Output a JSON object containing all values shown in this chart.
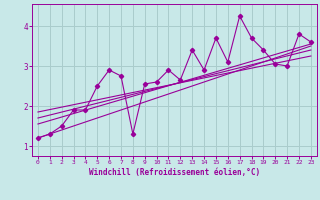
{
  "x_data": [
    0,
    1,
    2,
    3,
    4,
    5,
    6,
    7,
    8,
    9,
    10,
    11,
    12,
    13,
    14,
    15,
    16,
    17,
    18,
    19,
    20,
    21,
    22,
    23
  ],
  "y_scatter": [
    1.2,
    1.3,
    1.5,
    1.9,
    1.9,
    2.5,
    2.9,
    2.75,
    1.3,
    2.55,
    2.6,
    2.9,
    2.65,
    3.4,
    2.9,
    3.7,
    3.1,
    4.25,
    3.7,
    3.4,
    3.05,
    3.0,
    3.8,
    3.6
  ],
  "color": "#990099",
  "bg_color": "#c8e8e8",
  "grid_color": "#aacccc",
  "xlim": [
    -0.5,
    23.5
  ],
  "ylim": [
    0.75,
    4.55
  ],
  "yticks": [
    1,
    2,
    3,
    4
  ],
  "xticks": [
    0,
    1,
    2,
    3,
    4,
    5,
    6,
    7,
    8,
    9,
    10,
    11,
    12,
    13,
    14,
    15,
    16,
    17,
    18,
    19,
    20,
    21,
    22,
    23
  ],
  "xlabel": "Windchill (Refroidissement éolien,°C)",
  "line1_x": [
    0,
    23
  ],
  "line1_y": [
    1.2,
    3.5
  ],
  "line2_x": [
    0,
    23
  ],
  "line2_y": [
    1.55,
    3.55
  ],
  "line3_x": [
    0,
    23
  ],
  "line3_y": [
    1.7,
    3.4
  ],
  "line4_x": [
    0,
    23
  ],
  "line4_y": [
    1.85,
    3.25
  ]
}
